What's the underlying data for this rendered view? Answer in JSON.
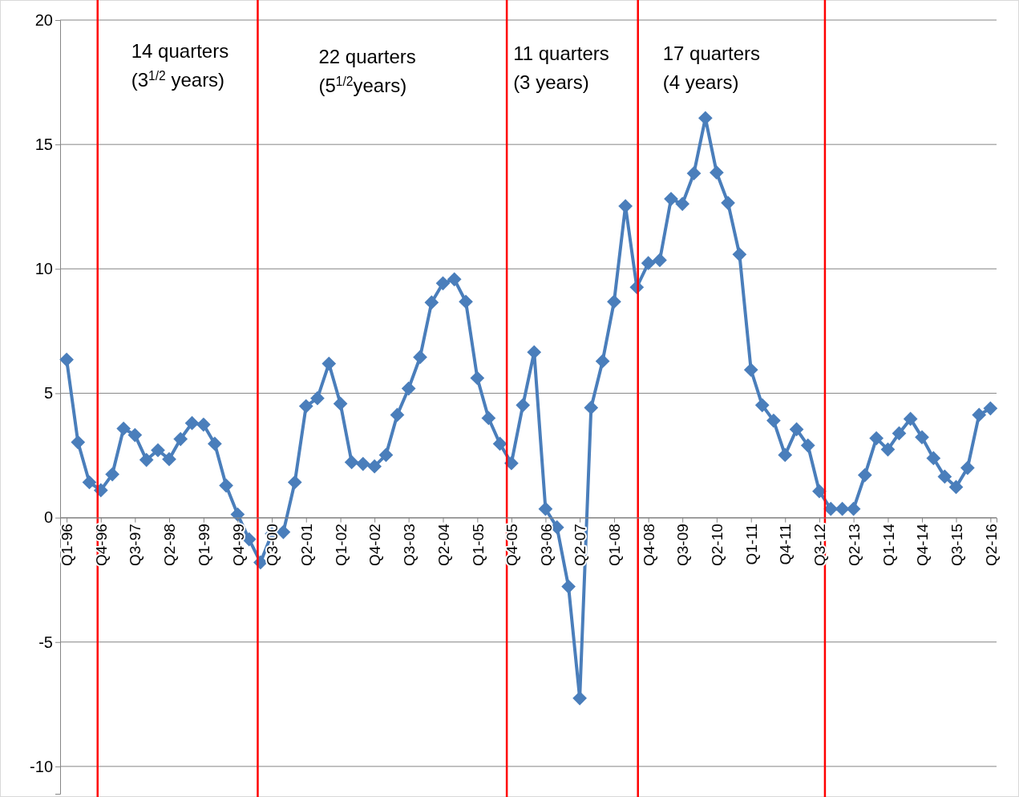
{
  "chart_data": {
    "type": "line",
    "x": [
      "1996-01",
      "1996-04",
      "1996-07",
      "1996-10",
      "1997-01",
      "1997-04",
      "1997-07",
      "1997-10",
      "1998-01",
      "1998-04",
      "1998-07",
      "1998-10",
      "1999-01",
      "1999-04",
      "1999-07",
      "1999-10",
      "2000-01",
      "2000-04",
      "2000-07",
      "2000-10",
      "2001-01",
      "2001-04",
      "2001-07",
      "2001-10",
      "2002-01",
      "2002-04",
      "2002-07",
      "2002-10",
      "2003-01",
      "2003-04",
      "2003-07",
      "2003-10",
      "2004-01",
      "2004-04",
      "2004-07",
      "2004-10",
      "2005-01",
      "2005-04",
      "2005-07",
      "2005-10",
      "2006-01",
      "2006-04",
      "2006-07",
      "2006-10",
      "2007-01",
      "2007-04",
      "2007-07",
      "2007-10",
      "2008-01",
      "2008-04",
      "2008-07",
      "2008-10",
      "2009-01",
      "2009-04",
      "2009-07",
      "2009-10",
      "2010-01",
      "2010-04",
      "2010-07",
      "2010-10",
      "2011-01",
      "2011-04",
      "2011-07",
      "2011-10",
      "2012-01",
      "2012-04",
      "2012-07",
      "2012-10",
      "2013-01",
      "2013-04",
      "2013-07",
      "2013-10",
      "2014-01",
      "2014-04",
      "2014-07",
      "2014-10",
      "2015-01",
      "2015-04",
      "2015-07",
      "2015-10",
      "2016-01",
      "2016-04"
    ],
    "series": [
      {
        "color": "#4a7ebb",
        "values": [
          6.35,
          3.03,
          1.42,
          1.1,
          1.74,
          3.58,
          3.32,
          2.32,
          2.71,
          2.35,
          3.16,
          3.8,
          3.74,
          2.97,
          1.29,
          0.13,
          -0.87,
          -1.8,
          -0.65,
          -0.58,
          1.42,
          4.48,
          4.8,
          6.19,
          4.58,
          2.23,
          2.16,
          2.06,
          2.52,
          4.13,
          5.19,
          6.45,
          8.65,
          9.42,
          9.58,
          8.68,
          5.61,
          4.0,
          2.97,
          2.19,
          4.52,
          6.65,
          0.35,
          -0.39,
          -2.77,
          -7.26,
          4.42,
          6.29,
          8.68,
          12.52,
          9.26,
          10.23,
          10.35,
          12.81,
          12.61,
          13.84,
          16.06,
          13.87,
          12.65,
          10.58,
          5.94,
          4.52,
          3.9,
          2.52,
          3.55,
          2.9,
          1.06,
          0.35,
          0.35,
          0.35,
          1.71,
          3.19,
          2.74,
          3.39,
          3.97,
          3.23,
          2.39,
          1.65,
          1.23,
          2.0,
          4.13,
          4.39
        ]
      }
    ],
    "xlim": [
      "1995-11-10",
      "2016-05-20"
    ],
    "xticks": [
      {
        "value": "1996-01",
        "label": "Q1-96"
      },
      {
        "value": "1996-10",
        "label": "Q4-96"
      },
      {
        "value": "1997-07",
        "label": "Q3-97"
      },
      {
        "value": "1998-04",
        "label": "Q2-98"
      },
      {
        "value": "1999-01",
        "label": "Q1-99"
      },
      {
        "value": "1999-10",
        "label": "Q4-99"
      },
      {
        "value": "2000-07",
        "label": "Q3-00"
      },
      {
        "value": "2001-04",
        "label": "Q2-01"
      },
      {
        "value": "2002-01",
        "label": "Q1-02"
      },
      {
        "value": "2002-10",
        "label": "Q4-02"
      },
      {
        "value": "2003-07",
        "label": "Q3-03"
      },
      {
        "value": "2004-04",
        "label": "Q2-04"
      },
      {
        "value": "2005-01",
        "label": "Q1-05"
      },
      {
        "value": "2005-10",
        "label": "Q4-05"
      },
      {
        "value": "2006-07",
        "label": "Q3-06"
      },
      {
        "value": "2007-04",
        "label": "Q2-07"
      },
      {
        "value": "2008-01",
        "label": "Q1-08"
      },
      {
        "value": "2008-10",
        "label": "Q4-08"
      },
      {
        "value": "2009-07",
        "label": "Q3-09"
      },
      {
        "value": "2010-04",
        "label": "Q2-10"
      },
      {
        "value": "2011-01",
        "label": "Q1-11"
      },
      {
        "value": "2011-10",
        "label": "Q4-11"
      },
      {
        "value": "2012-07",
        "label": "Q3-12"
      },
      {
        "value": "2013-04",
        "label": "Q2-13"
      },
      {
        "value": "2014-01",
        "label": "Q1-14"
      },
      {
        "value": "2014-10",
        "label": "Q4-14"
      },
      {
        "value": "2015-07",
        "label": "Q3-15"
      },
      {
        "value": "2016-04",
        "label": "Q2-16"
      }
    ],
    "ylim": [
      -11.1,
      20
    ],
    "yticks": [
      -10,
      -5,
      0,
      5,
      10,
      15,
      20
    ],
    "grid": "y",
    "marker": "diamond",
    "line_style": "solid",
    "ref_lines": [
      {
        "axis": "x",
        "value": "1996-09-05",
        "color": "#ff0000"
      },
      {
        "axis": "x",
        "value": "2000-03-10",
        "color": "#ff0000"
      },
      {
        "axis": "x",
        "value": "2005-08-25",
        "color": "#ff0000"
      },
      {
        "axis": "x",
        "value": "2008-07-10",
        "color": "#ff0000"
      },
      {
        "axis": "x",
        "value": "2012-08-15",
        "color": "#ff0000"
      }
    ],
    "annotations": [
      "14 quarters\n(3$^{1/2}$ years)",
      "22 quarters\n(5$^{1/2}$years)",
      "11 quarters\n(3 years)",
      "17 quarters\n(4 years)"
    ]
  }
}
